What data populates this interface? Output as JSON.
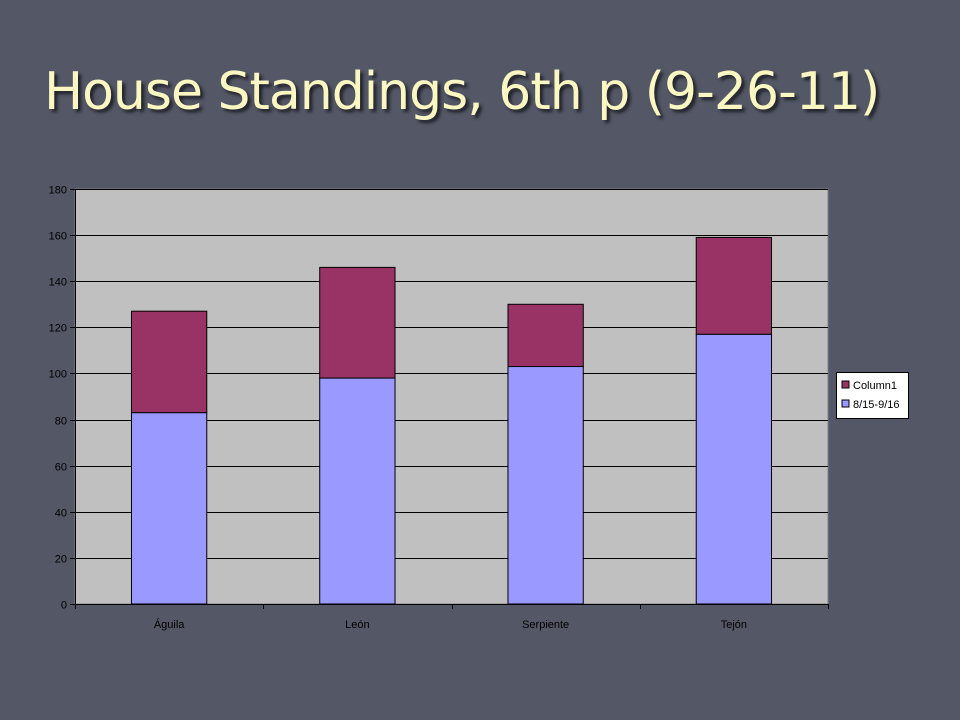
{
  "slide": {
    "title": "House Standings, 6th p (9-26-11)"
  },
  "chart_data": {
    "type": "bar",
    "stacked": true,
    "categories": [
      "Águila",
      "León",
      "Serpiente",
      "Tejón"
    ],
    "series": [
      {
        "name": "8/15-9/16",
        "values": [
          83,
          98,
          103,
          117
        ],
        "color": "#9999ff"
      },
      {
        "name": "Column1",
        "values": [
          44,
          48,
          27,
          42
        ],
        "color": "#993366"
      }
    ],
    "ylim": [
      0,
      180
    ],
    "yticks": [
      0,
      20,
      40,
      60,
      80,
      100,
      120,
      140,
      160,
      180
    ],
    "grid": true,
    "legend_position": "right",
    "plot_background": "#c0c0c0",
    "chart_background": "#545866"
  }
}
